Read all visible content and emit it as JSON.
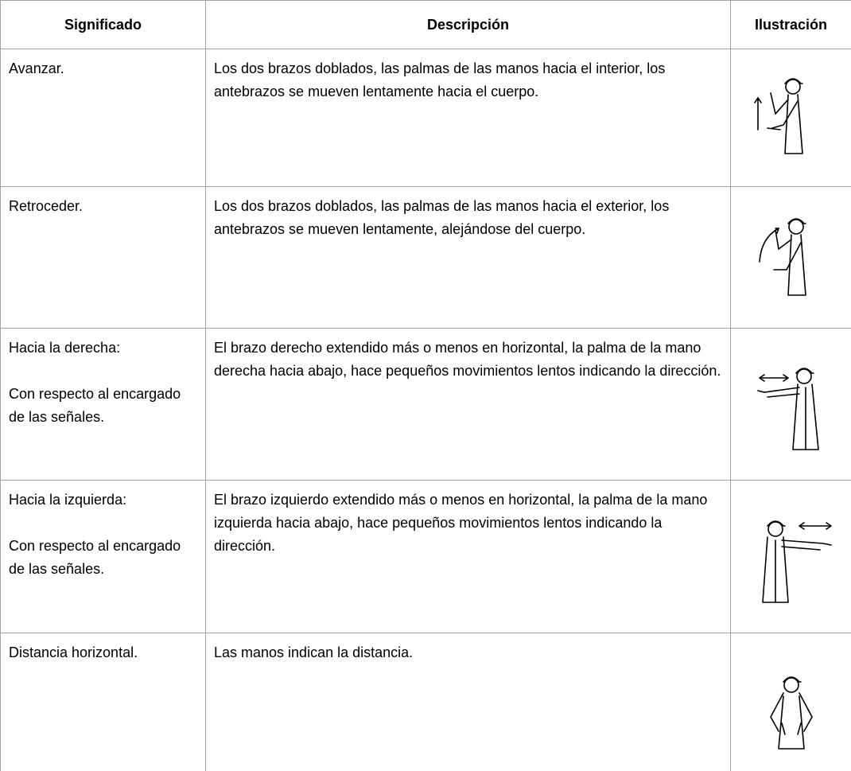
{
  "table": {
    "header": [
      "Significado",
      "Descripción",
      "Ilustración"
    ],
    "rows": [
      {
        "significado": [
          "Avanzar."
        ],
        "descripcion": "Los dos brazos doblados, las palmas de las manos hacia el interior, los antebrazos se mueven lentamente hacia el cuerpo."
      },
      {
        "significado": [
          "Retroceder."
        ],
        "descripcion": "Los dos brazos doblados, las palmas de las manos hacia el exterior, los antebrazos se mueven lentamente, alejándose del cuerpo."
      },
      {
        "significado": [
          "Hacia la derecha:",
          "Con respecto al encargado de las señales."
        ],
        "descripcion": "El brazo derecho extendido más o menos en horizontal, la palma de la mano derecha hacia abajo, hace pequeños movimientos lentos indicando la dirección."
      },
      {
        "significado": [
          "Hacia la izquierda:",
          "Con respecto al encargado de las señales."
        ],
        "descripcion": "El brazo izquierdo extendido más o menos en horizontal, la palma de la mano izquierda hacia abajo, hace pequeños movimientos lentos indicando la dirección."
      },
      {
        "significado": [
          "Distancia horizontal."
        ],
        "descripcion": "Las manos indican la distancia."
      }
    ]
  }
}
